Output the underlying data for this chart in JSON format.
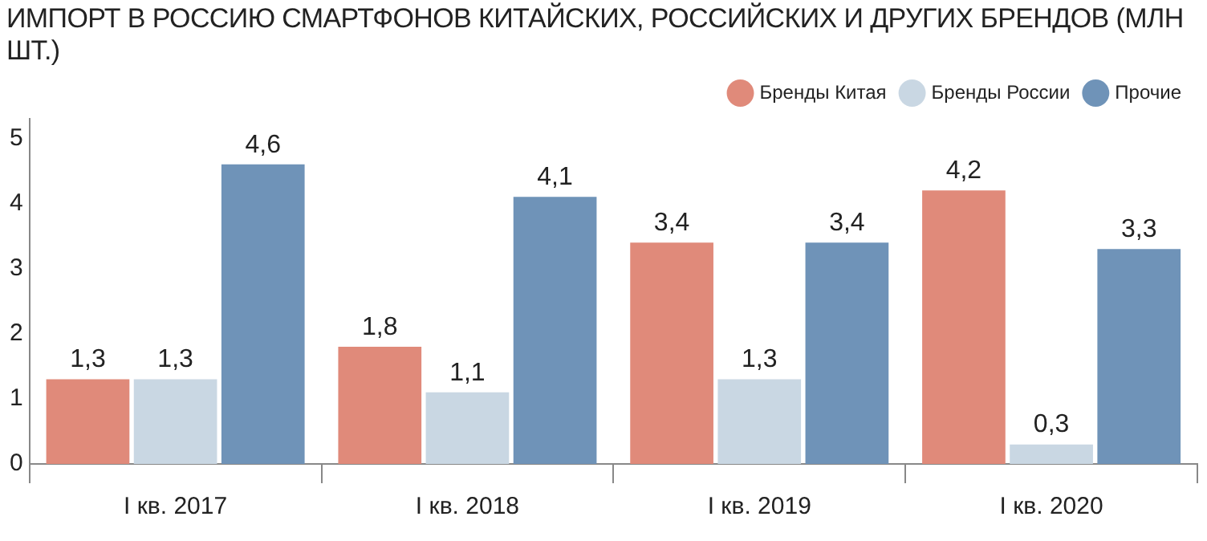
{
  "chart_data": {
    "type": "bar",
    "title": "ИМПОРТ В РОССИЮ СМАРТФОНОВ КИТАЙСКИХ, РОССИЙСКИХ И ДРУГИХ БРЕНДОВ (МЛН ШТ.)",
    "categories": [
      "I кв. 2017",
      "I кв. 2018",
      "I кв. 2019",
      "I кв. 2020"
    ],
    "series": [
      {
        "name": "Бренды Китая",
        "color": "#e08a7a",
        "values": [
          1.3,
          1.8,
          3.4,
          4.2
        ],
        "value_labels": [
          "1,3",
          "1,8",
          "3,4",
          "4,2"
        ]
      },
      {
        "name": "Бренды России",
        "color": "#c9d7e3",
        "values": [
          1.3,
          1.1,
          1.3,
          0.3
        ],
        "value_labels": [
          "1,3",
          "1,1",
          "1,3",
          "0,3"
        ]
      },
      {
        "name": "Прочие",
        "color": "#6f93b8",
        "values": [
          4.6,
          4.1,
          3.4,
          3.3
        ],
        "value_labels": [
          "4,6",
          "4,1",
          "3,4",
          "3,3"
        ]
      }
    ],
    "ylim": [
      0,
      5.3
    ],
    "yticks": [
      0,
      1,
      2,
      3,
      4,
      5
    ],
    "grid": false,
    "legend": "top right"
  }
}
